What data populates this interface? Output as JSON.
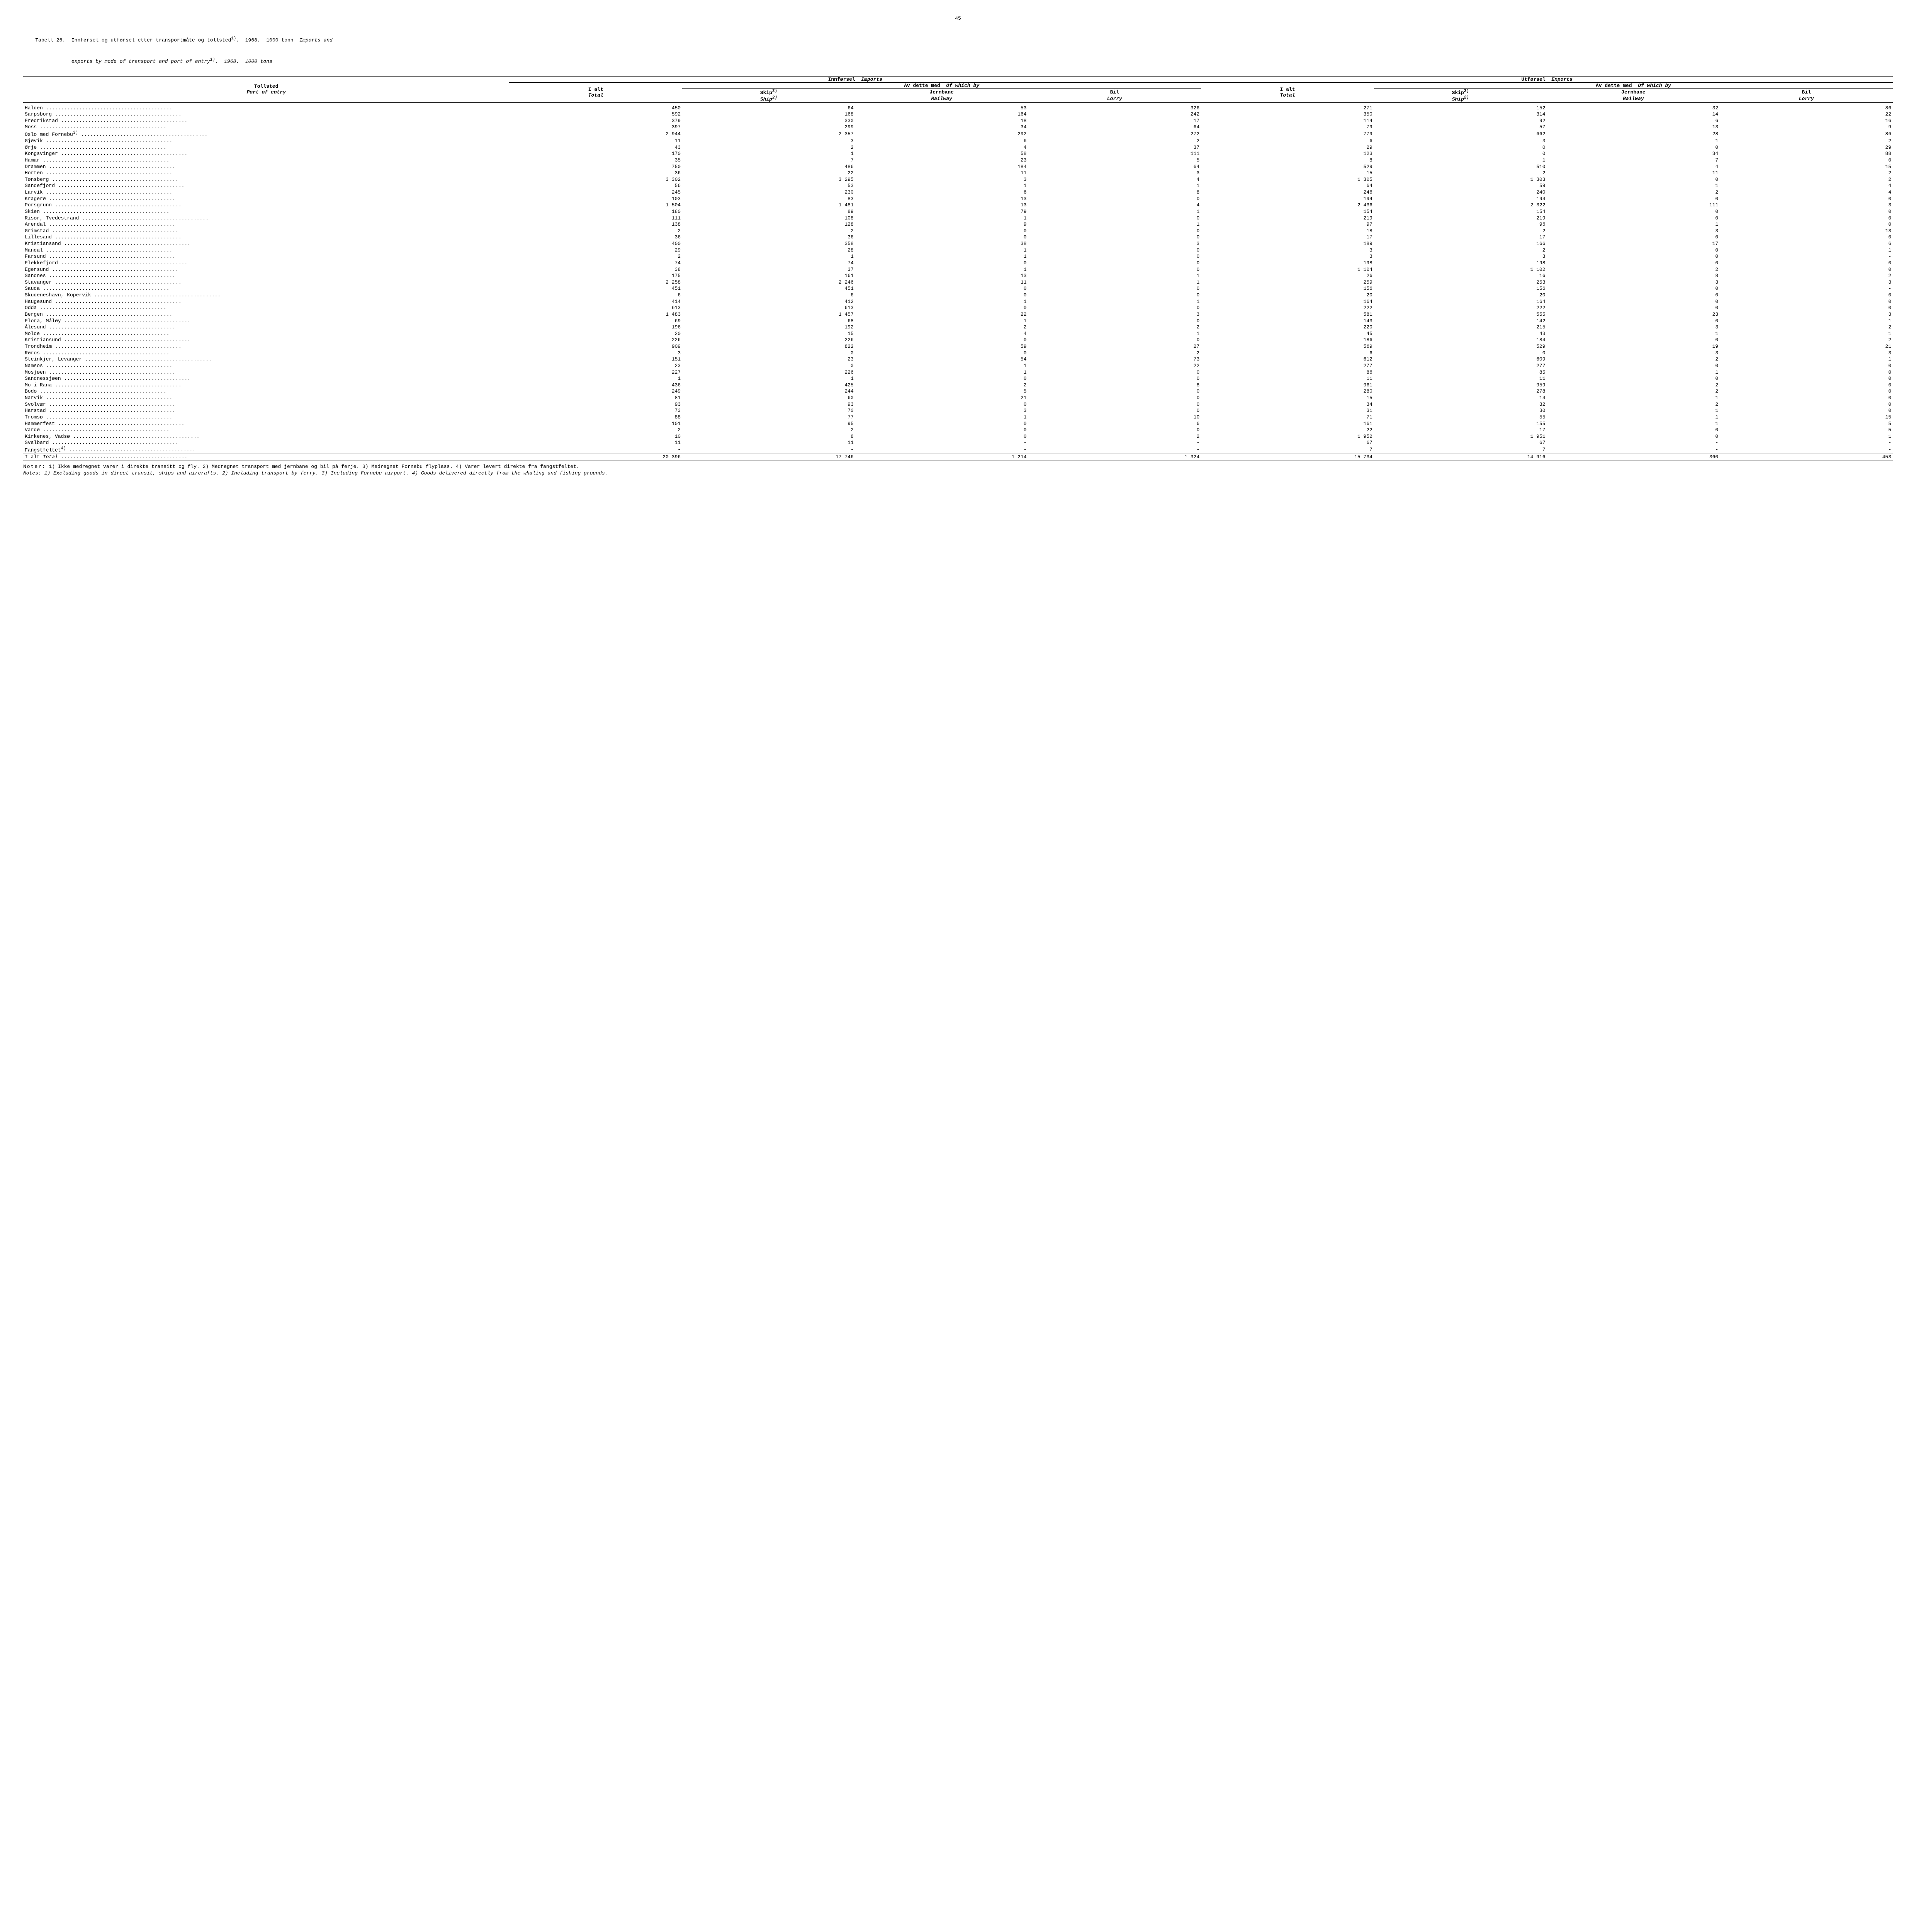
{
  "page_number": "45",
  "title": {
    "label": "Tabell 26.",
    "no": "Innførsel og utførsel etter transportmåte og tollsted",
    "sup1": "1)",
    "year_no": "1968.",
    "unit_no": "1000 tonn",
    "en_tail": "Imports and",
    "en": "exports by mode of transport and port of entry",
    "sup1b": "1)",
    "year_en": "1968.",
    "unit_en": "1000 tons"
  },
  "headers": {
    "port_no": "Tollsted",
    "port_en": "Port of entry",
    "imports_no": "Innførsel",
    "imports_en": "Imports",
    "exports_no": "Utførsel",
    "exports_en": "Exports",
    "total_no": "I alt",
    "total_en": "Total",
    "ofwhich_no": "Av dette med",
    "ofwhich_en": "Of which by",
    "ship_no": "Skip",
    "ship_sup": "2)",
    "ship_en": "Ship",
    "rail_no": "Jernbane",
    "rail_en": "Railway",
    "lorry_no": "Bil",
    "lorry_en": "Lorry"
  },
  "rows": [
    {
      "port": "Halden",
      "imp_total": "450",
      "imp_ship": "64",
      "imp_rail": "53",
      "imp_lorry": "326",
      "exp_total": "271",
      "exp_ship": "152",
      "exp_rail": "32",
      "exp_lorry": "86"
    },
    {
      "port": "Sarpsborg",
      "imp_total": "592",
      "imp_ship": "168",
      "imp_rail": "164",
      "imp_lorry": "242",
      "exp_total": "350",
      "exp_ship": "314",
      "exp_rail": "14",
      "exp_lorry": "22"
    },
    {
      "port": "Fredrikstad",
      "imp_total": "379",
      "imp_ship": "330",
      "imp_rail": "18",
      "imp_lorry": "17",
      "exp_total": "114",
      "exp_ship": "92",
      "exp_rail": "6",
      "exp_lorry": "16"
    },
    {
      "port": "Moss",
      "imp_total": "397",
      "imp_ship": "299",
      "imp_rail": "34",
      "imp_lorry": "64",
      "exp_total": "79",
      "exp_ship": "57",
      "exp_rail": "13",
      "exp_lorry": "9"
    },
    {
      "port": "Oslo med Fornebu",
      "sup": "3)",
      "imp_total": "2 944",
      "imp_ship": "2 357",
      "imp_rail": "292",
      "imp_lorry": "272",
      "exp_total": "779",
      "exp_ship": "662",
      "exp_rail": "28",
      "exp_lorry": "86"
    },
    {
      "port": "Gjøvik",
      "imp_total": "11",
      "imp_ship": "3",
      "imp_rail": "6",
      "imp_lorry": "2",
      "exp_total": "6",
      "exp_ship": "3",
      "exp_rail": "1",
      "exp_lorry": "2"
    },
    {
      "port": "Ørje",
      "imp_total": "43",
      "imp_ship": "2",
      "imp_rail": "4",
      "imp_lorry": "37",
      "exp_total": "29",
      "exp_ship": "0",
      "exp_rail": "0",
      "exp_lorry": "29"
    },
    {
      "port": "Kongsvinger",
      "imp_total": "170",
      "imp_ship": "1",
      "imp_rail": "58",
      "imp_lorry": "111",
      "exp_total": "123",
      "exp_ship": "0",
      "exp_rail": "34",
      "exp_lorry": "88"
    },
    {
      "port": "Hamar",
      "imp_total": "35",
      "imp_ship": "7",
      "imp_rail": "23",
      "imp_lorry": "5",
      "exp_total": "8",
      "exp_ship": "1",
      "exp_rail": "7",
      "exp_lorry": "0"
    },
    {
      "port": "Drammen",
      "imp_total": "750",
      "imp_ship": "486",
      "imp_rail": "184",
      "imp_lorry": "64",
      "exp_total": "529",
      "exp_ship": "510",
      "exp_rail": "4",
      "exp_lorry": "15"
    },
    {
      "port": "Horten",
      "imp_total": "36",
      "imp_ship": "22",
      "imp_rail": "11",
      "imp_lorry": "3",
      "exp_total": "15",
      "exp_ship": "2",
      "exp_rail": "11",
      "exp_lorry": "2"
    },
    {
      "port": "Tønsberg",
      "imp_total": "3 302",
      "imp_ship": "3 295",
      "imp_rail": "3",
      "imp_lorry": "4",
      "exp_total": "1 305",
      "exp_ship": "1 303",
      "exp_rail": "0",
      "exp_lorry": "2"
    },
    {
      "port": "Sandefjord",
      "imp_total": "56",
      "imp_ship": "53",
      "imp_rail": "1",
      "imp_lorry": "1",
      "exp_total": "64",
      "exp_ship": "59",
      "exp_rail": "1",
      "exp_lorry": "4"
    },
    {
      "port": "Larvik",
      "imp_total": "245",
      "imp_ship": "230",
      "imp_rail": "6",
      "imp_lorry": "8",
      "exp_total": "246",
      "exp_ship": "240",
      "exp_rail": "2",
      "exp_lorry": "4"
    },
    {
      "port": "Kragerø",
      "imp_total": "103",
      "imp_ship": "83",
      "imp_rail": "13",
      "imp_lorry": "0",
      "exp_total": "194",
      "exp_ship": "194",
      "exp_rail": "0",
      "exp_lorry": "0"
    },
    {
      "port": "Porsgrunn",
      "imp_total": "1 504",
      "imp_ship": "1 481",
      "imp_rail": "13",
      "imp_lorry": "4",
      "exp_total": "2 436",
      "exp_ship": "2 322",
      "exp_rail": "111",
      "exp_lorry": "3"
    },
    {
      "port": "Skien",
      "imp_total": "180",
      "imp_ship": "89",
      "imp_rail": "79",
      "imp_lorry": "1",
      "exp_total": "154",
      "exp_ship": "154",
      "exp_rail": "0",
      "exp_lorry": "0"
    },
    {
      "port": "Risør, Tvedestrand",
      "imp_total": "111",
      "imp_ship": "108",
      "imp_rail": "1",
      "imp_lorry": "0",
      "exp_total": "219",
      "exp_ship": "219",
      "exp_rail": "0",
      "exp_lorry": "0"
    },
    {
      "port": "Arendal",
      "imp_total": "138",
      "imp_ship": "128",
      "imp_rail": "9",
      "imp_lorry": "1",
      "exp_total": "97",
      "exp_ship": "96",
      "exp_rail": "1",
      "exp_lorry": "0"
    },
    {
      "port": "Grimstad",
      "imp_total": "2",
      "imp_ship": "2",
      "imp_rail": "0",
      "imp_lorry": "0",
      "exp_total": "18",
      "exp_ship": "2",
      "exp_rail": "3",
      "exp_lorry": "13"
    },
    {
      "port": "Lillesand",
      "imp_total": "36",
      "imp_ship": "36",
      "imp_rail": "0",
      "imp_lorry": "0",
      "exp_total": "17",
      "exp_ship": "17",
      "exp_rail": "0",
      "exp_lorry": "0"
    },
    {
      "port": "Kristiansand",
      "imp_total": "400",
      "imp_ship": "358",
      "imp_rail": "38",
      "imp_lorry": "3",
      "exp_total": "189",
      "exp_ship": "166",
      "exp_rail": "17",
      "exp_lorry": "6"
    },
    {
      "port": "Mandal",
      "imp_total": "29",
      "imp_ship": "28",
      "imp_rail": "1",
      "imp_lorry": "0",
      "exp_total": "3",
      "exp_ship": "2",
      "exp_rail": "0",
      "exp_lorry": "1"
    },
    {
      "port": "Farsund",
      "imp_total": "2",
      "imp_ship": "1",
      "imp_rail": "1",
      "imp_lorry": "0",
      "exp_total": "3",
      "exp_ship": "3",
      "exp_rail": "0",
      "exp_lorry": "-"
    },
    {
      "port": "Flekkefjord",
      "imp_total": "74",
      "imp_ship": "74",
      "imp_rail": "0",
      "imp_lorry": "0",
      "exp_total": "198",
      "exp_ship": "198",
      "exp_rail": "0",
      "exp_lorry": "0"
    },
    {
      "port": "Egersund",
      "imp_total": "38",
      "imp_ship": "37",
      "imp_rail": "1",
      "imp_lorry": "0",
      "exp_total": "1 104",
      "exp_ship": "1 102",
      "exp_rail": "2",
      "exp_lorry": "0"
    },
    {
      "port": "Sandnes",
      "imp_total": "175",
      "imp_ship": "161",
      "imp_rail": "13",
      "imp_lorry": "1",
      "exp_total": "26",
      "exp_ship": "16",
      "exp_rail": "8",
      "exp_lorry": "2"
    },
    {
      "port": "Stavanger",
      "imp_total": "2 258",
      "imp_ship": "2 246",
      "imp_rail": "11",
      "imp_lorry": "1",
      "exp_total": "259",
      "exp_ship": "253",
      "exp_rail": "3",
      "exp_lorry": "3"
    },
    {
      "port": "Sauda",
      "imp_total": "451",
      "imp_ship": "451",
      "imp_rail": "0",
      "imp_lorry": "0",
      "exp_total": "156",
      "exp_ship": "156",
      "exp_rail": "0",
      "exp_lorry": "-"
    },
    {
      "port": "Skudeneshavn, Kopervik",
      "imp_total": "6",
      "imp_ship": "6",
      "imp_rail": "0",
      "imp_lorry": "0",
      "exp_total": "20",
      "exp_ship": "20",
      "exp_rail": "0",
      "exp_lorry": "0"
    },
    {
      "port": "Haugesund",
      "imp_total": "414",
      "imp_ship": "412",
      "imp_rail": "1",
      "imp_lorry": "1",
      "exp_total": "164",
      "exp_ship": "164",
      "exp_rail": "0",
      "exp_lorry": "0"
    },
    {
      "port": "Odda",
      "imp_total": "613",
      "imp_ship": "613",
      "imp_rail": "0",
      "imp_lorry": "0",
      "exp_total": "222",
      "exp_ship": "222",
      "exp_rail": "0",
      "exp_lorry": "0"
    },
    {
      "port": "Bergen",
      "imp_total": "1 483",
      "imp_ship": "1 457",
      "imp_rail": "22",
      "imp_lorry": "3",
      "exp_total": "581",
      "exp_ship": "555",
      "exp_rail": "23",
      "exp_lorry": "3"
    },
    {
      "port": "Flora, Måløy",
      "imp_total": "69",
      "imp_ship": "68",
      "imp_rail": "1",
      "imp_lorry": "0",
      "exp_total": "143",
      "exp_ship": "142",
      "exp_rail": "0",
      "exp_lorry": "1"
    },
    {
      "port": "Ålesund",
      "imp_total": "196",
      "imp_ship": "192",
      "imp_rail": "2",
      "imp_lorry": "2",
      "exp_total": "220",
      "exp_ship": "215",
      "exp_rail": "3",
      "exp_lorry": "2"
    },
    {
      "port": "Molde",
      "imp_total": "20",
      "imp_ship": "15",
      "imp_rail": "4",
      "imp_lorry": "1",
      "exp_total": "45",
      "exp_ship": "43",
      "exp_rail": "1",
      "exp_lorry": "1"
    },
    {
      "port": "Kristiansund",
      "imp_total": "226",
      "imp_ship": "226",
      "imp_rail": "0",
      "imp_lorry": "0",
      "exp_total": "186",
      "exp_ship": "184",
      "exp_rail": "0",
      "exp_lorry": "2"
    },
    {
      "port": "Trondheim",
      "imp_total": "909",
      "imp_ship": "822",
      "imp_rail": "59",
      "imp_lorry": "27",
      "exp_total": "569",
      "exp_ship": "529",
      "exp_rail": "19",
      "exp_lorry": "21"
    },
    {
      "port": "Røros",
      "imp_total": "3",
      "imp_ship": "0",
      "imp_rail": "0",
      "imp_lorry": "2",
      "exp_total": "6",
      "exp_ship": "0",
      "exp_rail": "3",
      "exp_lorry": "3"
    },
    {
      "port": "Steinkjer, Levanger",
      "imp_total": "151",
      "imp_ship": "23",
      "imp_rail": "54",
      "imp_lorry": "73",
      "exp_total": "612",
      "exp_ship": "609",
      "exp_rail": "2",
      "exp_lorry": "1"
    },
    {
      "port": "Namsos",
      "imp_total": "23",
      "imp_ship": "0",
      "imp_rail": "1",
      "imp_lorry": "22",
      "exp_total": "277",
      "exp_ship": "277",
      "exp_rail": "0",
      "exp_lorry": "0"
    },
    {
      "port": "Mosjøen",
      "imp_total": "227",
      "imp_ship": "226",
      "imp_rail": "1",
      "imp_lorry": "0",
      "exp_total": "86",
      "exp_ship": "85",
      "exp_rail": "1",
      "exp_lorry": "0"
    },
    {
      "port": "Sandnessjøen",
      "imp_total": "1",
      "imp_ship": "1",
      "imp_rail": "0",
      "imp_lorry": "0",
      "exp_total": "11",
      "exp_ship": "11",
      "exp_rail": "0",
      "exp_lorry": "0"
    },
    {
      "port": "Mo i Rana",
      "imp_total": "436",
      "imp_ship": "425",
      "imp_rail": "2",
      "imp_lorry": "8",
      "exp_total": "961",
      "exp_ship": "959",
      "exp_rail": "2",
      "exp_lorry": "0"
    },
    {
      "port": "Bodø",
      "imp_total": "249",
      "imp_ship": "244",
      "imp_rail": "5",
      "imp_lorry": "0",
      "exp_total": "280",
      "exp_ship": "278",
      "exp_rail": "2",
      "exp_lorry": "0"
    },
    {
      "port": "Narvik",
      "imp_total": "81",
      "imp_ship": "60",
      "imp_rail": "21",
      "imp_lorry": "0",
      "exp_total": "15",
      "exp_ship": "14",
      "exp_rail": "1",
      "exp_lorry": "0"
    },
    {
      "port": "Svolvær",
      "imp_total": "93",
      "imp_ship": "93",
      "imp_rail": "0",
      "imp_lorry": "0",
      "exp_total": "34",
      "exp_ship": "32",
      "exp_rail": "2",
      "exp_lorry": "0"
    },
    {
      "port": "Harstad",
      "imp_total": "73",
      "imp_ship": "70",
      "imp_rail": "3",
      "imp_lorry": "0",
      "exp_total": "31",
      "exp_ship": "30",
      "exp_rail": "1",
      "exp_lorry": "0"
    },
    {
      "port": "Tromsø",
      "imp_total": "88",
      "imp_ship": "77",
      "imp_rail": "1",
      "imp_lorry": "10",
      "exp_total": "71",
      "exp_ship": "55",
      "exp_rail": "1",
      "exp_lorry": "15"
    },
    {
      "port": "Hammerfest",
      "imp_total": "101",
      "imp_ship": "95",
      "imp_rail": "0",
      "imp_lorry": "6",
      "exp_total": "161",
      "exp_ship": "155",
      "exp_rail": "1",
      "exp_lorry": "5"
    },
    {
      "port": "Vardø",
      "imp_total": "2",
      "imp_ship": "2",
      "imp_rail": "0",
      "imp_lorry": "0",
      "exp_total": "22",
      "exp_ship": "17",
      "exp_rail": "0",
      "exp_lorry": "5"
    },
    {
      "port": "Kirkenes, Vadsø",
      "imp_total": "10",
      "imp_ship": "8",
      "imp_rail": "0",
      "imp_lorry": "2",
      "exp_total": "1 952",
      "exp_ship": "1 951",
      "exp_rail": "0",
      "exp_lorry": "1"
    },
    {
      "port": "Svalbard",
      "imp_total": "11",
      "imp_ship": "11",
      "imp_rail": "-",
      "imp_lorry": "-",
      "exp_total": "67",
      "exp_ship": "67",
      "exp_rail": "-",
      "exp_lorry": "-"
    },
    {
      "port": "Fangstfeltet",
      "sup": "4)",
      "imp_total": "-",
      "imp_ship": "-",
      "imp_rail": "-",
      "imp_lorry": "-",
      "exp_total": "7",
      "exp_ship": "7",
      "exp_rail": "-",
      "exp_lorry": "-"
    }
  ],
  "total_row": {
    "label_no": "I alt",
    "label_en": "Total",
    "imp_total": "20 396",
    "imp_ship": "17 746",
    "imp_rail": "1 214",
    "imp_lorry": "1 324",
    "exp_total": "15 734",
    "exp_ship": "14 916",
    "exp_rail": "360",
    "exp_lorry": "453"
  },
  "notes": {
    "label_no": "Noter:",
    "n1_no": "1) Ikke medregnet varer i direkte transitt og fly.",
    "n2_no": "2) Medregnet transport med jernbane og bil på ferje.",
    "n3_no": "3) Medregnet Fornebu flyplass.",
    "n4_no": "4) Varer levert direkte fra fangstfeltet.",
    "label_en": "Notes:",
    "n1_en": "1) Excluding goods in direct transit, ships and aircrafts.",
    "n2_en": "2) Including transport by ferry.",
    "n3_en": "3) Including Fornebu airport.",
    "n4_en": "4) Goods delivered directly from the whaling and fishing grounds."
  }
}
